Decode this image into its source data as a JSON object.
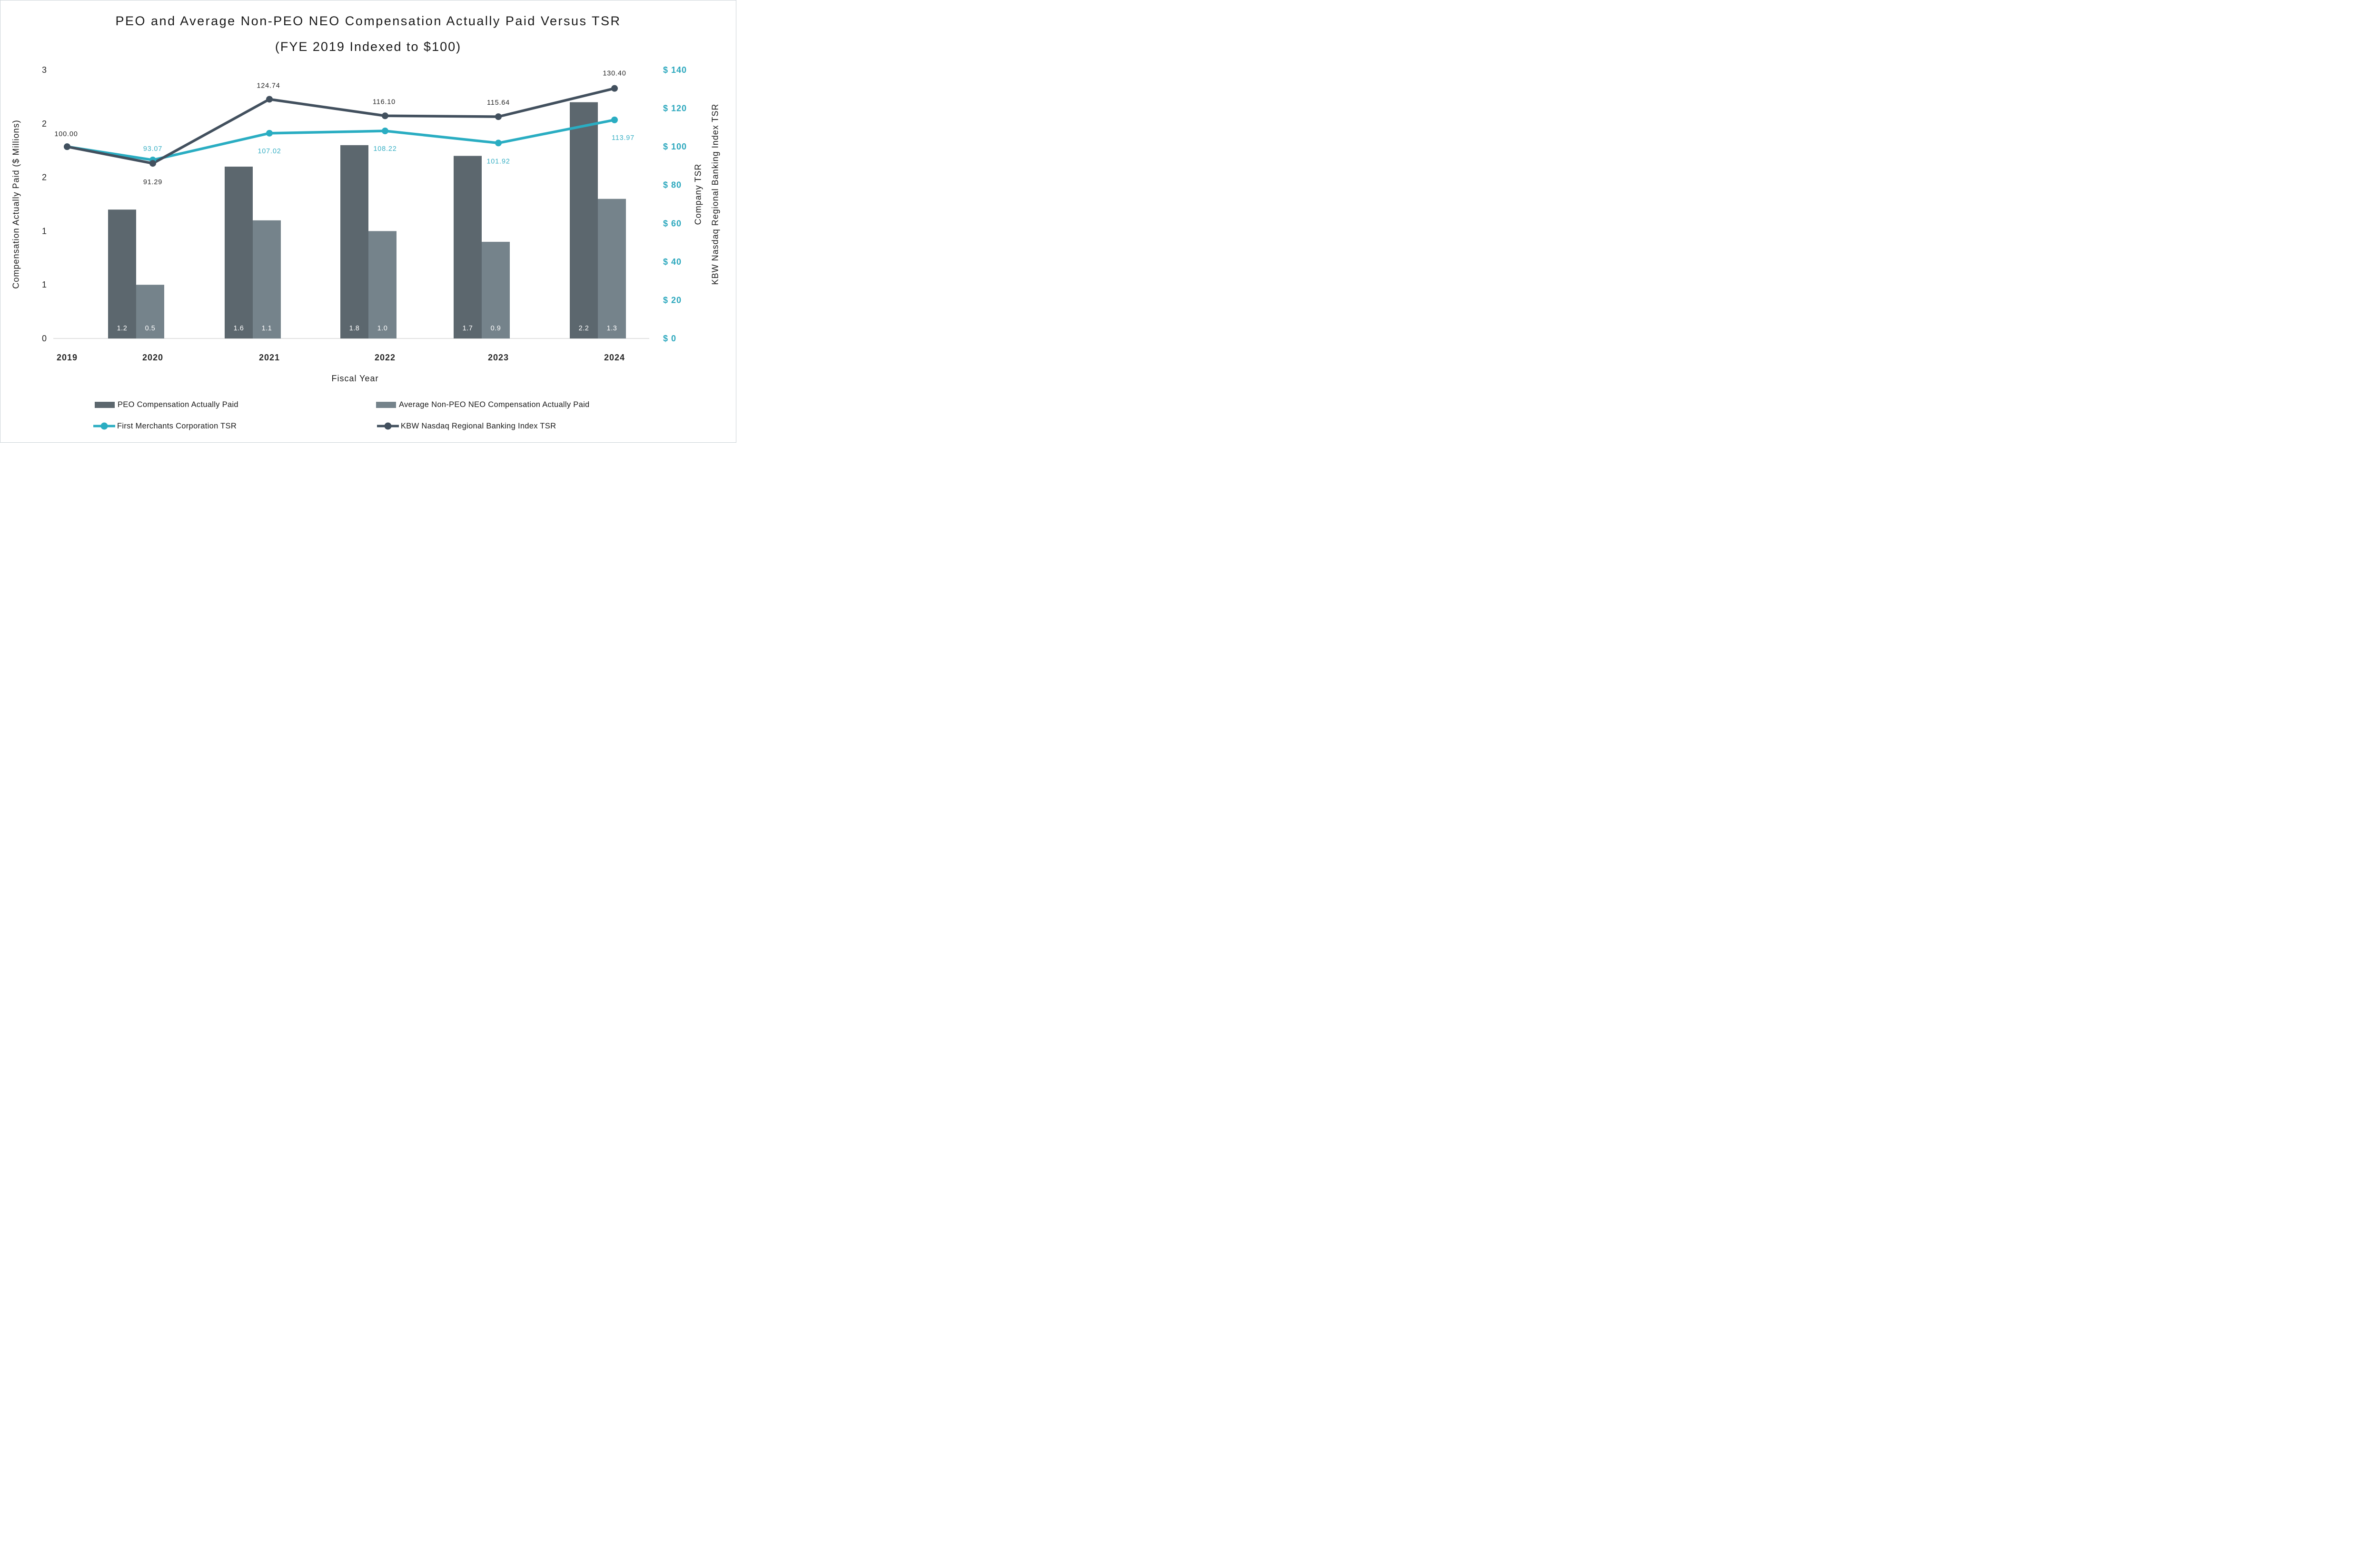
{
  "title": {
    "line1": "PEO and Average Non-PEO NEO Compensation Actually Paid Versus TSR",
    "line2": "(FYE 2019 Indexed to $100)"
  },
  "chart_data": {
    "type": "combo-bar-line",
    "categories": [
      "2019",
      "2020",
      "2021",
      "2022",
      "2023",
      "2024"
    ],
    "bar_series": [
      {
        "name": "PEO Compensation Actually Paid",
        "color": "#5c676e",
        "axis": "left",
        "values": [
          null,
          1.2,
          1.6,
          1.8,
          1.7,
          2.2
        ],
        "labels": [
          "",
          "1.2",
          "1.6",
          "1.8",
          "1.7",
          "2.2"
        ]
      },
      {
        "name": "Average Non-PEO NEO Compensation Actually Paid",
        "color": "#75838b",
        "axis": "left",
        "values": [
          null,
          0.5,
          1.1,
          1.0,
          0.9,
          1.3
        ],
        "labels": [
          "",
          "0.5",
          "1.1",
          "1.0",
          "0.9",
          "1.3"
        ]
      }
    ],
    "line_series": [
      {
        "name": "First Merchants Corporation TSR",
        "color": "#2aadc2",
        "label_color": "#3ab0c5",
        "axis": "right",
        "values": [
          100.0,
          93.07,
          107.02,
          108.22,
          101.92,
          113.97
        ],
        "labels": [
          "",
          "93.07",
          "107.02",
          "108.22",
          "101.92",
          "113.97"
        ]
      },
      {
        "name": "KBW Nasdaq Regional Banking Index TSR",
        "color": "#42505e",
        "label_color": "#262626",
        "axis": "right",
        "values": [
          100.0,
          91.29,
          124.74,
          116.1,
          115.64,
          130.4
        ],
        "labels": [
          "100.00",
          "91.29",
          "124.74",
          "116.10",
          "115.64",
          "130.40"
        ]
      }
    ],
    "left_axis": {
      "title": "Compensation Actually Paid ($ Millions)",
      "range": [
        0,
        2.5
      ],
      "tick_values": [
        0,
        0.5,
        1,
        1.5,
        2,
        2.5
      ],
      "tick_labels": [
        "0",
        "1",
        "1",
        "2",
        "2",
        "3"
      ],
      "tick_color": "#262626"
    },
    "right_axis": {
      "titles": [
        "Company TSR",
        "KBW Nasdaq Regional Banking Index TSR"
      ],
      "range": [
        0,
        140
      ],
      "tick_values": [
        0,
        20,
        40,
        60,
        80,
        100,
        120,
        140
      ],
      "tick_labels": [
        "$ 0",
        "$ 20",
        "$ 40",
        "$ 60",
        "$ 80",
        "$ 100",
        "$ 120",
        "$ 140"
      ],
      "tick_color": "#2aa7bd"
    },
    "x_axis": {
      "title": "Fiscal Year",
      "tick_color": "#262626"
    },
    "bar_value_label_color": "#ffffff",
    "baseline_color": "#d9d9d9",
    "legend_position": "bottom"
  }
}
